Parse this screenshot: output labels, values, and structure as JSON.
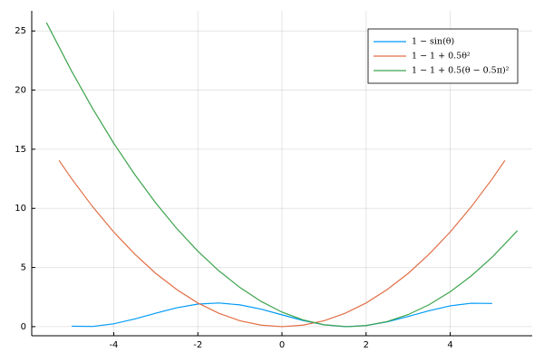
{
  "chart_data": {
    "type": "line",
    "series": [
      {
        "name": "1 − sin(θ)",
        "color": "#009af9",
        "x": [
          -5,
          -4.5,
          -4,
          -3.5,
          -3,
          -2.5,
          -2,
          -1.5,
          -1,
          -0.5,
          0,
          0.5,
          1,
          1.5,
          2,
          2.5,
          3,
          3.5,
          4,
          4.5,
          5
        ],
        "values": [
          0.04,
          0.02,
          0.24,
          0.65,
          1.14,
          1.6,
          1.91,
          2.0,
          1.84,
          1.48,
          1.0,
          0.52,
          0.16,
          0.0,
          0.09,
          0.4,
          0.86,
          1.35,
          1.76,
          1.98,
          1.96
        ]
      },
      {
        "name": "1 − 1 + 0.5θ²",
        "color": "#e26f46",
        "x": [
          -5.3,
          -5,
          -4.5,
          -4,
          -3.5,
          -3,
          -2.5,
          -2,
          -1.5,
          -1,
          -0.5,
          0,
          0.5,
          1,
          1.5,
          2,
          2.5,
          3,
          3.5,
          4,
          4.5,
          5,
          5.3
        ],
        "values": [
          14.05,
          12.5,
          10.13,
          8,
          6.13,
          4.5,
          3.13,
          2,
          1.13,
          0.5,
          0.13,
          0,
          0.13,
          0.5,
          1.13,
          2,
          3.13,
          4.5,
          6.13,
          8,
          10.13,
          12.5,
          14.05
        ]
      },
      {
        "name": "1 − 1 + 0.5(θ − 0.5π)²",
        "color": "#3da44d",
        "x": [
          -5.6,
          -5,
          -4.5,
          -4,
          -3.5,
          -3,
          -2.5,
          -2,
          -1.5,
          -1,
          -0.5,
          0,
          0.5,
          1,
          1.57,
          2,
          2.5,
          3,
          3.5,
          4,
          4.5,
          5,
          5.6
        ],
        "values": [
          25.71,
          21.59,
          18.43,
          15.51,
          12.86,
          10.45,
          8.29,
          6.38,
          4.72,
          3.31,
          2.14,
          1.23,
          0.57,
          0.16,
          0,
          0.09,
          0.43,
          1.02,
          1.86,
          2.95,
          4.29,
          5.88,
          8.12
        ]
      }
    ],
    "xlim": [
      -5.95,
      5.95
    ],
    "xticks": [
      -4,
      -2,
      0,
      2,
      4
    ],
    "ylim": [
      -0.77,
      26.7
    ],
    "yticks": [
      0,
      5,
      10,
      15,
      20,
      25
    ],
    "grid": true,
    "legend": "top-right"
  }
}
